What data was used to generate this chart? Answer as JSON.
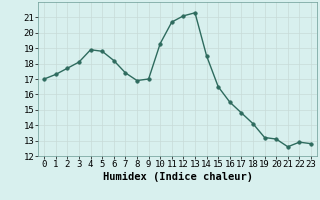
{
  "x": [
    0,
    1,
    2,
    3,
    4,
    5,
    6,
    7,
    8,
    9,
    10,
    11,
    12,
    13,
    14,
    15,
    16,
    17,
    18,
    19,
    20,
    21,
    22,
    23
  ],
  "y": [
    17.0,
    17.3,
    17.7,
    18.1,
    18.9,
    18.8,
    18.2,
    17.4,
    16.9,
    17.0,
    19.3,
    20.7,
    21.1,
    21.3,
    18.5,
    16.5,
    15.5,
    14.8,
    14.1,
    13.2,
    13.1,
    12.6,
    12.9,
    12.8
  ],
  "line_color": "#2e6b5e",
  "marker": "o",
  "marker_size": 2.5,
  "bg_color": "#d8f0ee",
  "grid_color": "#c8dbd8",
  "xlabel": "Humidex (Indice chaleur)",
  "ylim": [
    12,
    22
  ],
  "xlim": [
    -0.5,
    23.5
  ],
  "yticks": [
    12,
    13,
    14,
    15,
    16,
    17,
    18,
    19,
    20,
    21
  ],
  "xticks": [
    0,
    1,
    2,
    3,
    4,
    5,
    6,
    7,
    8,
    9,
    10,
    11,
    12,
    13,
    14,
    15,
    16,
    17,
    18,
    19,
    20,
    21,
    22,
    23
  ],
  "tick_fontsize": 6.5,
  "xlabel_fontsize": 7.5
}
